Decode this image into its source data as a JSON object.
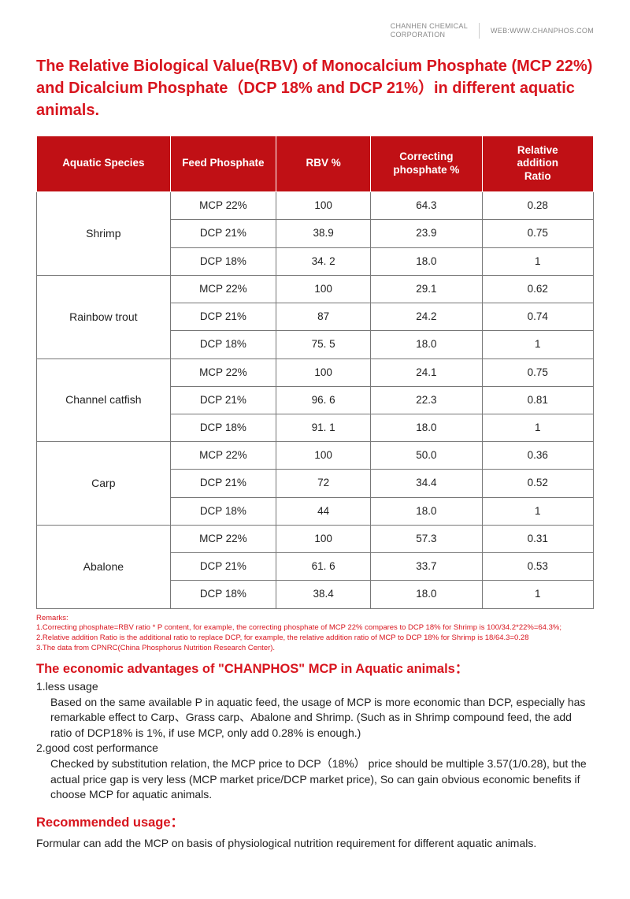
{
  "header": {
    "corp_line1": "CHANHEN CHEMICAL",
    "corp_line2": "CORPORATION",
    "web": "WEB:WWW.CHANPHOS.COM"
  },
  "title": "The Relative Biological Value(RBV) of Monocalcium Phosphate (MCP 22%) and Dicalcium Phosphate（DCP 18% and DCP 21%）in different aquatic animals.",
  "table": {
    "columns": [
      "Aquatic Species",
      "Feed Phosphate",
      "RBV %",
      "Correcting phosphate %",
      "Relative addition Ratio"
    ],
    "col_widths": [
      "24%",
      "19%",
      "17%",
      "20%",
      "20%"
    ],
    "header_bg": "#c01015",
    "header_fg": "#ffffff",
    "border_color": "#777777",
    "groups": [
      {
        "species": "Shrimp",
        "rows": [
          {
            "feed": "MCP 22%",
            "rbv": "100",
            "corr": "64.3",
            "ratio": "0.28"
          },
          {
            "feed": "DCP 21%",
            "rbv": "38.9",
            "corr": "23.9",
            "ratio": "0.75"
          },
          {
            "feed": "DCP 18%",
            "rbv": "34. 2",
            "corr": "18.0",
            "ratio": "1"
          }
        ]
      },
      {
        "species": "Rainbow trout",
        "rows": [
          {
            "feed": "MCP 22%",
            "rbv": "100",
            "corr": "29.1",
            "ratio": "0.62"
          },
          {
            "feed": "DCP 21%",
            "rbv": "87",
            "corr": "24.2",
            "ratio": "0.74"
          },
          {
            "feed": "DCP 18%",
            "rbv": "75. 5",
            "corr": "18.0",
            "ratio": "1"
          }
        ]
      },
      {
        "species": "Channel catfish",
        "rows": [
          {
            "feed": "MCP 22%",
            "rbv": "100",
            "corr": "24.1",
            "ratio": "0.75"
          },
          {
            "feed": "DCP 21%",
            "rbv": "96. 6",
            "corr": "22.3",
            "ratio": "0.81"
          },
          {
            "feed": "DCP 18%",
            "rbv": "91. 1",
            "corr": "18.0",
            "ratio": "1"
          }
        ]
      },
      {
        "species": "Carp",
        "rows": [
          {
            "feed": "MCP 22%",
            "rbv": "100",
            "corr": "50.0",
            "ratio": "0.36"
          },
          {
            "feed": "DCP 21%",
            "rbv": "72",
            "corr": "34.4",
            "ratio": "0.52"
          },
          {
            "feed": "DCP 18%",
            "rbv": "44",
            "corr": "18.0",
            "ratio": "1"
          }
        ]
      },
      {
        "species": "Abalone",
        "rows": [
          {
            "feed": "MCP 22%",
            "rbv": "100",
            "corr": "57.3",
            "ratio": "0.31"
          },
          {
            "feed": "DCP 21%",
            "rbv": "61. 6",
            "corr": "33.7",
            "ratio": "0.53"
          },
          {
            "feed": "DCP 18%",
            "rbv": "38.4",
            "corr": "18.0",
            "ratio": "1"
          }
        ]
      }
    ]
  },
  "remarks": {
    "heading": "Remarks:",
    "lines": [
      "1.Correcting phosphate=RBV ratio * P content, for example, the correcting phosphate of MCP 22% compares to DCP 18% for Shrimp is 100/34.2*22%=64.3%;",
      "2.Relative addition Ratio is the additional ratio to replace DCP, for example, the relative addition ratio of MCP to DCP 18% for Shrimp is  18/64.3=0.28",
      "3.The data from CPNRC(China Phosphorus Nutrition Research Center)."
    ]
  },
  "advantages": {
    "title": "The economic advantages of \"CHANPHOS\" MCP in Aquatic animals：",
    "item1_label": "1.less usage",
    "item1_text": "Based on the same available P in aquatic feed, the usage of MCP is more economic than DCP, especially has remarkable effect to Carp、Grass carp、Abalone and Shrimp. (Such as in Shrimp compound feed, the add ratio of DCP18% is 1%, if use MCP, only add 0.28% is enough.)",
    "item2_label": "2.good cost performance",
    "item2_text": "Checked by substitution relation, the MCP price to DCP（18%） price should be multiple 3.57(1/0.28), but the actual price gap is very less (MCP market price/DCP market price), So can gain obvious economic benefits if choose MCP for aquatic animals."
  },
  "recommended": {
    "title": "Recommended usage：",
    "text": "Formular can add the MCP on basis of physiological nutrition requirement for different aquatic animals."
  },
  "colors": {
    "accent": "#d8151e",
    "body": "#222222",
    "muted": "#888888"
  }
}
